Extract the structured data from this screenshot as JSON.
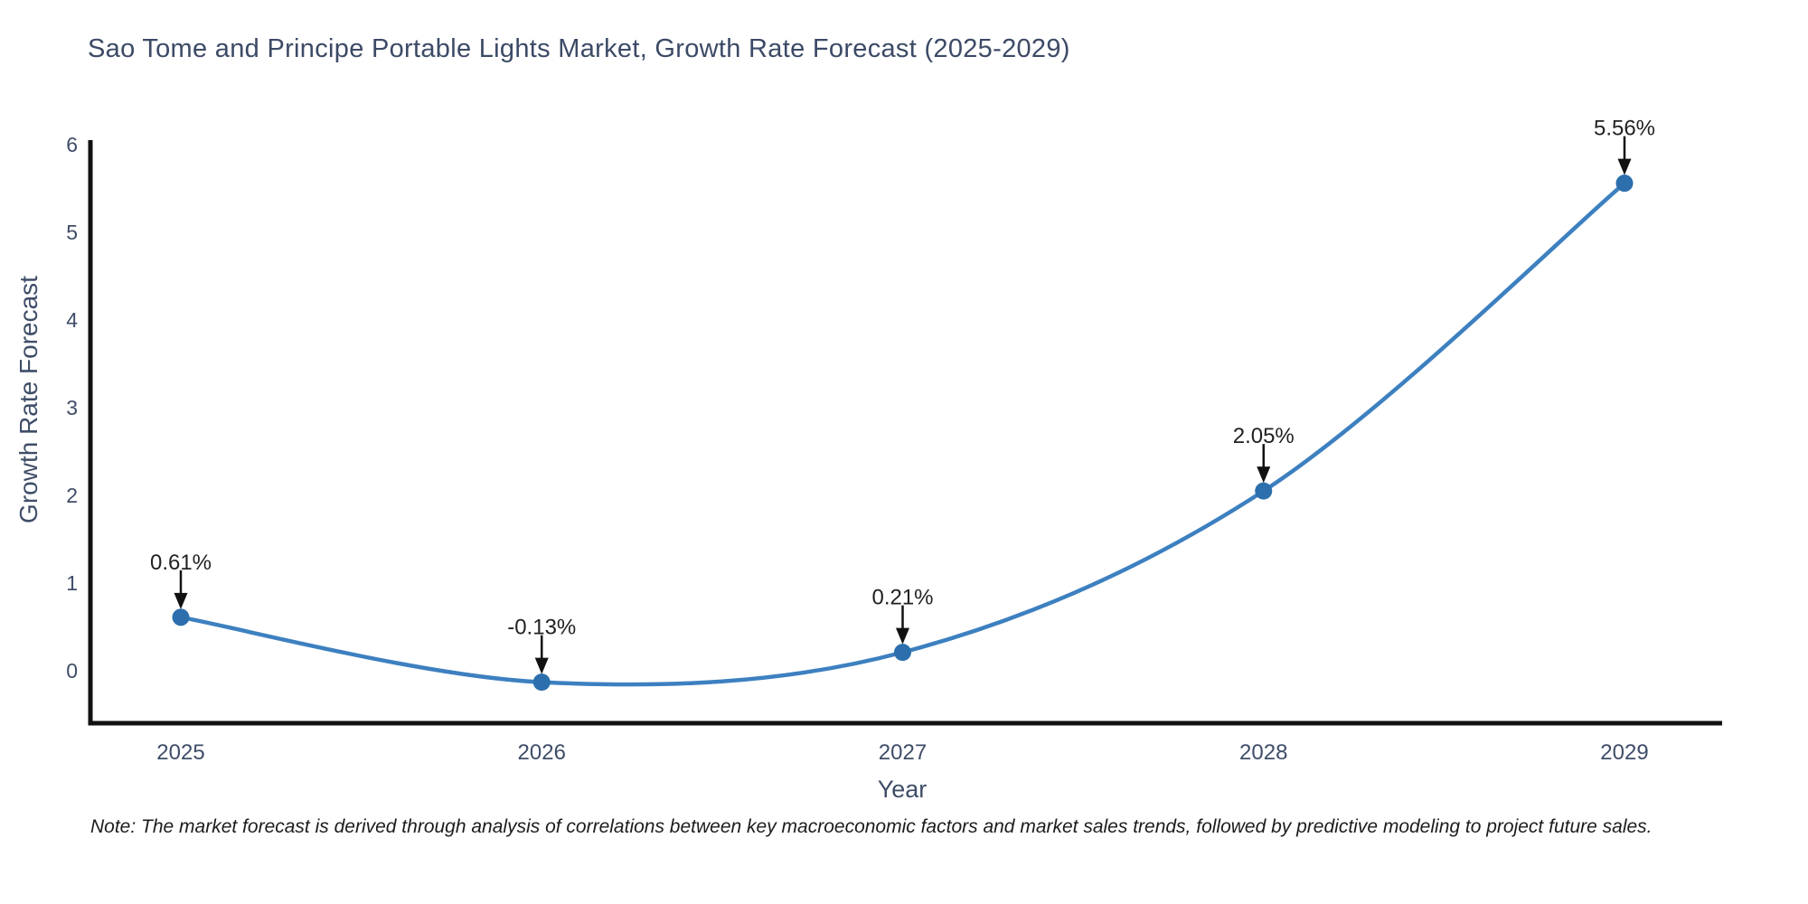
{
  "chart_data": {
    "type": "line",
    "line_shape": "spline",
    "title": "Sao Tome and Principe Portable Lights Market, Growth Rate Forecast (2025-2029)",
    "xlabel": "Year",
    "ylabel": "Growth Rate Forecast",
    "x": [
      2025,
      2026,
      2027,
      2028,
      2029
    ],
    "series": [
      {
        "name": "Growth Rate Forecast",
        "values": [
          0.61,
          -0.13,
          0.21,
          2.05,
          5.56
        ]
      }
    ],
    "point_labels": [
      "0.61%",
      "-0.13%",
      "0.21%",
      "2.05%",
      "5.56%"
    ],
    "yticks": [
      0,
      1,
      2,
      3,
      4,
      5,
      6
    ],
    "ylim": [
      -0.6,
      6.05
    ],
    "xlim": [
      2024.75,
      2029.27
    ],
    "grid": false,
    "legend": "none",
    "colors": {
      "line": "#3d80c0",
      "marker": "#2d6fad",
      "axis": "#111111",
      "tick_label": "#3f4d68",
      "title": "#3c4a66",
      "annotation_text": "#222222",
      "annotation_arrow": "#111111",
      "background": "#ffffff"
    }
  },
  "note": {
    "text": "Note: The market forecast is derived through analysis of correlations between key macroeconomic factors and market sales trends, followed by predictive modeling to project future sales."
  }
}
